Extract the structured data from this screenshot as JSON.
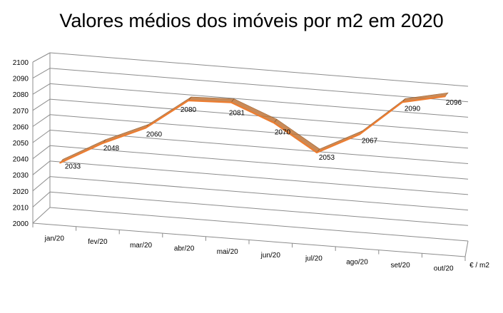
{
  "chart_data": {
    "type": "line",
    "title": "Valores médios dos imóveis por m2 em 2020",
    "xlabel": "",
    "ylabel": "",
    "series_axis_label": "€ / m2",
    "categories": [
      "jan/20",
      "fev/20",
      "mar/20",
      "abr/20",
      "mai/20",
      "jun/20",
      "jul/20",
      "ago/20",
      "set/20",
      "out/20"
    ],
    "series": [
      {
        "values": [
          2033,
          2048,
          2060,
          2080,
          2081,
          2070,
          2053,
          2067,
          2090,
          2096
        ]
      }
    ],
    "data_labels": [
      "2033",
      "2048",
      "2060",
      "2080",
      "2081",
      "2070",
      "2053",
      "2067",
      "2090",
      "2096"
    ],
    "ylim": [
      2000,
      2100
    ],
    "yticks": [
      2000,
      2010,
      2020,
      2030,
      2040,
      2050,
      2060,
      2070,
      2080,
      2090,
      2100
    ],
    "grid": true,
    "three_d": true,
    "legend": "none",
    "colors": {
      "line": "#ed7d31",
      "ribbon": "#c0763a",
      "grid": "#8c8c8c",
      "axis": "#8c8c8c",
      "text": "#000000"
    }
  }
}
